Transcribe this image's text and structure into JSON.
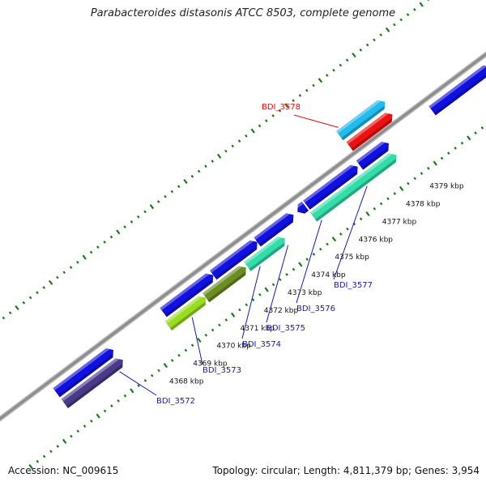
{
  "title": "Parabacteroides distasonis ATCC 8503, complete genome",
  "footer": {
    "accession": "Accession: NC_009615",
    "summary": "Topology: circular; Length: 4,811,379 bp; Genes: 3,954"
  },
  "ticks": [
    {
      "label": "4368 kbp",
      "pos": 4368
    },
    {
      "label": "4369 kbp",
      "pos": 4369
    },
    {
      "label": "4370 kbp",
      "pos": 4370
    },
    {
      "label": "4371 kbp",
      "pos": 4371
    },
    {
      "label": "4372 kbp",
      "pos": 4372
    },
    {
      "label": "4373 kbp",
      "pos": 4373
    },
    {
      "label": "4374 kbp",
      "pos": 4374
    },
    {
      "label": "4375 kbp",
      "pos": 4375
    },
    {
      "label": "4376 kbp",
      "pos": 4376
    },
    {
      "label": "4377 kbp",
      "pos": 4377
    },
    {
      "label": "4378 kbp",
      "pos": 4378
    },
    {
      "label": "4379 kbp",
      "pos": 4379
    }
  ],
  "gene_labels": [
    {
      "text": "BDI_3572",
      "color": "#1a1aa6"
    },
    {
      "text": "BDI_3573",
      "color": "#1a1aa6"
    },
    {
      "text": "BDI_3574",
      "color": "#1a1aa6"
    },
    {
      "text": "BDI_3575",
      "color": "#1a1aa6"
    },
    {
      "text": "BDI_3576",
      "color": "#1a1aa6"
    },
    {
      "text": "BDI_3577",
      "color": "#1a1aa6"
    },
    {
      "text": "BDI_3578",
      "color": "#e01010"
    }
  ],
  "colors": {
    "backbone": "#8c8c8c",
    "tick": "#1a7a1a",
    "cds_blue": "#1010e0",
    "cds_dark_slate": "#4a3a8a",
    "cds_yellow_green": "#99dd22",
    "cds_olive": "#6b8e23",
    "cds_aquamarine": "#33ddaa",
    "cds_sky": "#22bbee",
    "cds_red": "#ee1111",
    "label_line": "#1a1aa6",
    "highlight_line": "#e01010"
  }
}
